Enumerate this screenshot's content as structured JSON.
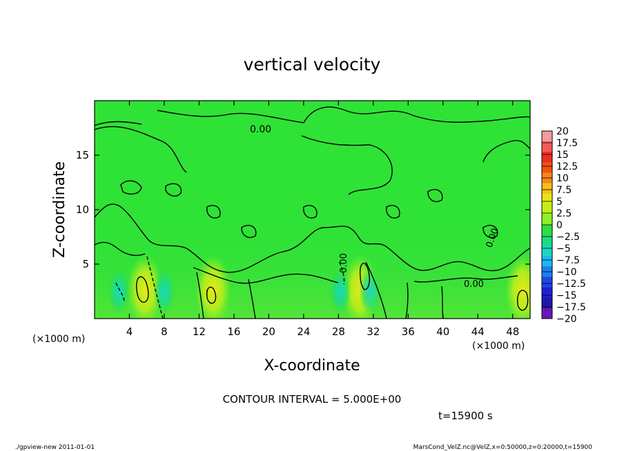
{
  "chart_data": {
    "type": "heatmap",
    "title": "vertical velocity",
    "xlabel": "X-coordinate",
    "ylabel": "Z-coordinate",
    "x_unit": "(×1000 m)",
    "z_unit": "(×1000 m)",
    "xlim": [
      0,
      50
    ],
    "zlim": [
      0,
      20
    ],
    "x_ticks": [
      "4",
      "8",
      "12",
      "16",
      "20",
      "24",
      "28",
      "32",
      "36",
      "40",
      "44",
      "48"
    ],
    "z_ticks": [
      "5",
      "10",
      "15"
    ],
    "colorbar_labels": [
      "20",
      "17.5",
      "15",
      "12.5",
      "10",
      "7.5",
      "5",
      "2.5",
      "0",
      "−2.5",
      "−5",
      "−7.5",
      "−10",
      "−12.5",
      "−15",
      "−17.5",
      "−20"
    ],
    "colorbar_colors": [
      "#f59a9a",
      "#f45b5b",
      "#f02a24",
      "#f5520c",
      "#f7861a",
      "#f6bf12",
      "#e6e514",
      "#bff01a",
      "#8af224",
      "#2ce040",
      "#1ddb82",
      "#19d8c3",
      "#1ab8f0",
      "#1a7ef2",
      "#1b47e8",
      "#1f1fd2",
      "#2018aa",
      "#6a16b8"
    ],
    "contour_labels": [
      "0.00",
      "0.00",
      "0.00",
      "0.00"
    ],
    "contour_interval_text": "CONTOUR INTERVAL = 5.000E+00",
    "time_text": "t=15900 s",
    "updraft_cores_x": [
      5.8,
      13.6,
      30.5,
      49.2
    ],
    "downdraft_cores_x": [
      2.8,
      8.0,
      28.2,
      31.6
    ]
  },
  "footer": {
    "left": "./gpview-new  2011-01-01",
    "right": "MarsCond_VelZ.nc@VelZ,x=0:50000,z=0:20000,t=15900"
  }
}
